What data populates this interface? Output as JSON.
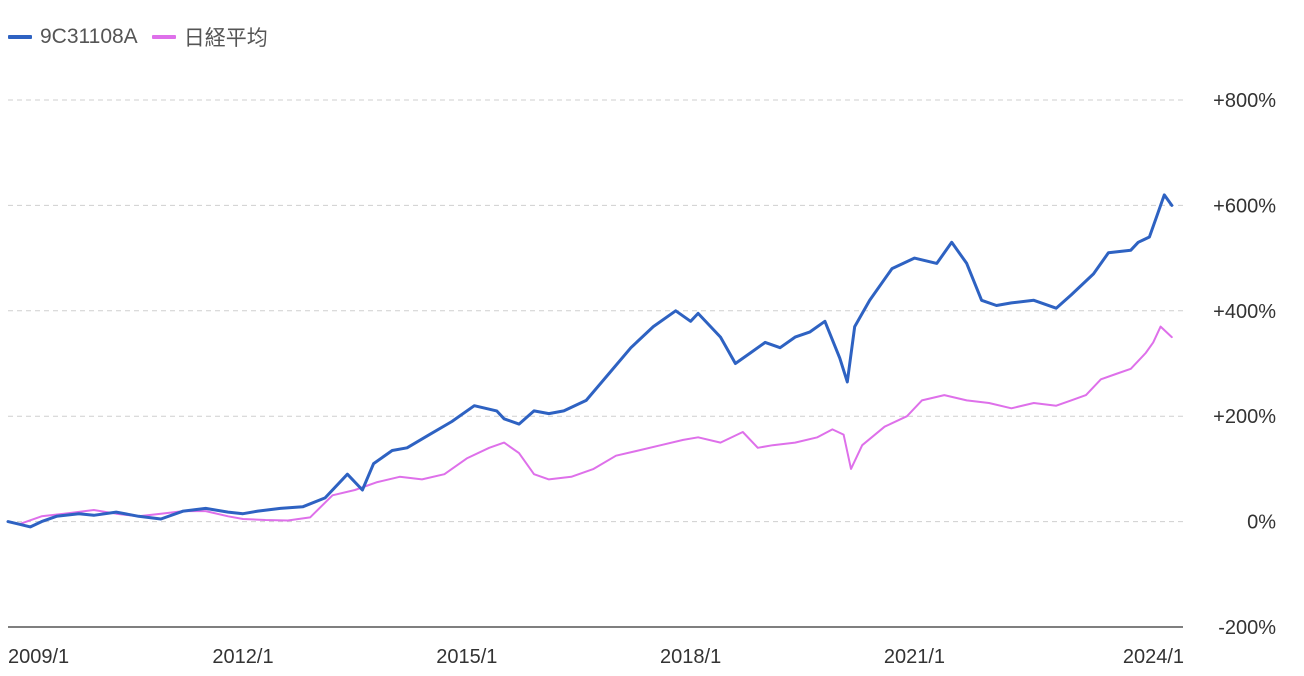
{
  "chart_data": {
    "type": "line",
    "legend_position": "top-left",
    "grid": true,
    "xlabel": "",
    "ylabel": "",
    "ylim": [
      -200,
      800
    ],
    "xlim": [
      2008.85,
      2024.6
    ],
    "y_ticks": [
      {
        "value": 800,
        "label": "+800%"
      },
      {
        "value": 600,
        "label": "+600%"
      },
      {
        "value": 400,
        "label": "+400%"
      },
      {
        "value": 200,
        "label": "+200%"
      },
      {
        "value": 0,
        "label": "0%"
      },
      {
        "value": -200,
        "label": "-200%"
      }
    ],
    "x_ticks": [
      {
        "value": 2009.0,
        "label": "2009/1"
      },
      {
        "value": 2012.0,
        "label": "2012/1"
      },
      {
        "value": 2015.0,
        "label": "2015/1"
      },
      {
        "value": 2018.0,
        "label": "2018/1"
      },
      {
        "value": 2021.0,
        "label": "2021/1"
      },
      {
        "value": 2024.0,
        "label": "2024/1"
      }
    ],
    "series": [
      {
        "name": "9C31108A",
        "color": "#2e62c2",
        "x": [
          2008.85,
          2009.0,
          2009.15,
          2009.3,
          2009.5,
          2009.8,
          2010.0,
          2010.3,
          2010.6,
          2010.9,
          2011.2,
          2011.5,
          2011.8,
          2012.0,
          2012.2,
          2012.5,
          2012.8,
          2013.1,
          2013.4,
          2013.6,
          2013.75,
          2014.0,
          2014.2,
          2014.5,
          2014.8,
          2015.1,
          2015.4,
          2015.5,
          2015.7,
          2015.9,
          2016.1,
          2016.3,
          2016.6,
          2016.9,
          2017.2,
          2017.5,
          2017.8,
          2018.0,
          2018.1,
          2018.4,
          2018.6,
          2018.8,
          2019.0,
          2019.2,
          2019.4,
          2019.6,
          2019.8,
          2020.0,
          2020.1,
          2020.2,
          2020.4,
          2020.7,
          2021.0,
          2021.3,
          2021.5,
          2021.7,
          2021.9,
          2022.1,
          2022.3,
          2022.6,
          2022.9,
          2023.1,
          2023.4,
          2023.6,
          2023.9,
          2024.0,
          2024.15,
          2024.25,
          2024.35,
          2024.45
        ],
        "values": [
          0,
          -5,
          -10,
          0,
          10,
          15,
          12,
          18,
          10,
          5,
          20,
          25,
          18,
          15,
          20,
          25,
          28,
          45,
          90,
          60,
          110,
          135,
          140,
          165,
          190,
          220,
          210,
          195,
          185,
          210,
          205,
          210,
          230,
          280,
          330,
          370,
          400,
          380,
          395,
          350,
          300,
          320,
          340,
          330,
          350,
          360,
          380,
          310,
          265,
          370,
          420,
          480,
          500,
          490,
          530,
          490,
          420,
          410,
          415,
          420,
          405,
          430,
          470,
          510,
          515,
          530,
          540,
          580,
          620,
          600
        ]
      },
      {
        "name": "日経平均",
        "color": "#de70ea",
        "x": [
          2008.85,
          2009.0,
          2009.3,
          2009.6,
          2010.0,
          2010.3,
          2010.6,
          2010.9,
          2011.2,
          2011.5,
          2011.8,
          2012.0,
          2012.3,
          2012.6,
          2012.9,
          2013.2,
          2013.5,
          2013.8,
          2014.1,
          2014.4,
          2014.7,
          2015.0,
          2015.3,
          2015.5,
          2015.7,
          2015.9,
          2016.1,
          2016.4,
          2016.7,
          2017.0,
          2017.3,
          2017.6,
          2017.9,
          2018.1,
          2018.4,
          2018.7,
          2018.9,
          2019.1,
          2019.4,
          2019.7,
          2019.9,
          2020.05,
          2020.15,
          2020.3,
          2020.6,
          2020.9,
          2021.1,
          2021.4,
          2021.7,
          2022.0,
          2022.3,
          2022.6,
          2022.9,
          2023.1,
          2023.3,
          2023.5,
          2023.7,
          2023.9,
          2024.1,
          2024.2,
          2024.3,
          2024.45
        ],
        "values": [
          0,
          -5,
          10,
          15,
          22,
          15,
          10,
          15,
          20,
          20,
          10,
          5,
          3,
          2,
          8,
          50,
          60,
          75,
          85,
          80,
          90,
          120,
          140,
          150,
          130,
          90,
          80,
          85,
          100,
          125,
          135,
          145,
          155,
          160,
          150,
          170,
          140,
          145,
          150,
          160,
          175,
          165,
          100,
          145,
          180,
          200,
          230,
          240,
          230,
          225,
          215,
          225,
          220,
          230,
          240,
          270,
          280,
          290,
          320,
          340,
          370,
          350
        ]
      }
    ]
  }
}
